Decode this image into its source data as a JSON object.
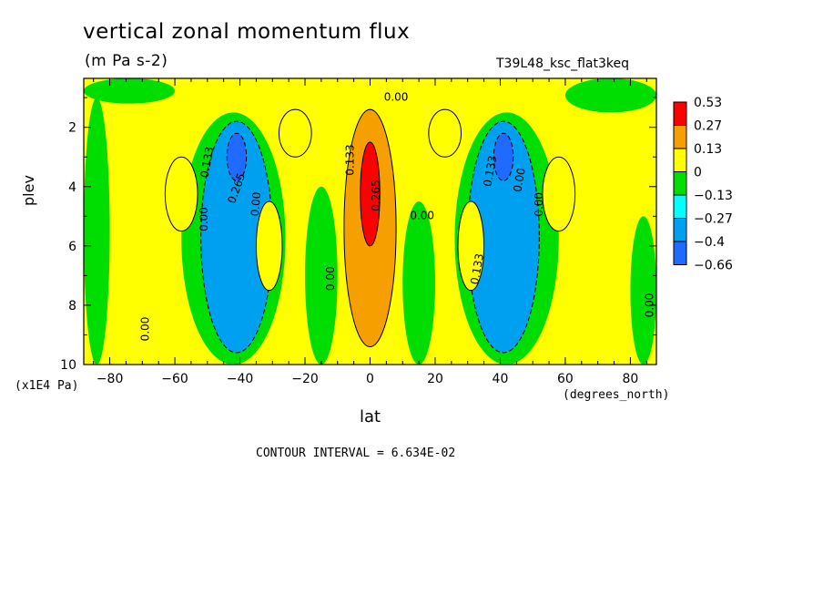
{
  "title": "vertical zonal momentum flux",
  "units": "(m Pa s-2)",
  "run_label": "T39L48_ksc_flat3keq",
  "contour_interval": "CONTOUR INTERVAL = 6.634E-02",
  "chart_data": {
    "type": "heatmap",
    "xlabel": "lat",
    "xunits": "(degrees_north)",
    "ylabel": "plev",
    "yunits": "(x1E4 Pa)",
    "xlim": [
      -88,
      88
    ],
    "ylim": [
      10,
      0.35
    ],
    "xticks": [
      -80,
      -60,
      -40,
      -20,
      0,
      20,
      40,
      60,
      80
    ],
    "yticks": [
      2,
      4,
      6,
      8,
      10
    ],
    "colorbar": {
      "levels": [
        "0.53",
        "0.27",
        "0.13",
        "0",
        "-0.13",
        "-0.27",
        "-0.4",
        "-0.66"
      ],
      "colors": [
        "#ff0000",
        "#f5a000",
        "#ffff00",
        "#00dd00",
        "#00ffff",
        "#00a0f0",
        "#1f6bff"
      ]
    },
    "regions": [
      {
        "name": "tropical-positive-jet",
        "lat": [
          -8,
          8
        ],
        "plev": [
          1.4,
          9.4
        ],
        "value": 0.27
      },
      {
        "name": "tropical-core",
        "lat": [
          -3,
          3
        ],
        "plev": [
          2.5,
          6.0
        ],
        "value": 0.53
      },
      {
        "name": "sh-negative-jet",
        "lat": [
          -52,
          -30
        ],
        "plev": [
          1.8,
          9.6
        ],
        "value": -0.27
      },
      {
        "name": "sh-negative-core",
        "lat": [
          -44,
          -38
        ],
        "plev": [
          2.2,
          3.8
        ],
        "value": -0.66
      },
      {
        "name": "nh-negative-jet",
        "lat": [
          30,
          52
        ],
        "plev": [
          1.8,
          9.6
        ],
        "value": -0.27
      },
      {
        "name": "nh-negative-core",
        "lat": [
          38,
          44
        ],
        "plev": [
          2.2,
          3.8
        ],
        "value": -0.66
      },
      {
        "name": "sh-positive-flank",
        "lat": [
          -35,
          -27
        ],
        "plev": [
          4.5,
          7.5
        ],
        "value": 0.13
      },
      {
        "name": "nh-positive-flank",
        "lat": [
          27,
          35
        ],
        "plev": [
          4.5,
          7.5
        ],
        "value": 0.13
      },
      {
        "name": "sh-upper-positive",
        "lat": [
          -28,
          -18
        ],
        "plev": [
          1.4,
          3.0
        ],
        "value": 0.13
      },
      {
        "name": "nh-upper-positive",
        "lat": [
          18,
          28
        ],
        "plev": [
          1.4,
          3.0
        ],
        "value": 0.13
      },
      {
        "name": "sh-subtropical-positive",
        "lat": [
          -63,
          -53
        ],
        "plev": [
          3.0,
          5.5
        ],
        "value": 0.13
      },
      {
        "name": "nh-subtropical-positive",
        "lat": [
          53,
          63
        ],
        "plev": [
          3.0,
          5.5
        ],
        "value": 0.13
      }
    ],
    "contour_labels": [
      {
        "text": "0.00",
        "lat": 8,
        "plev": 1.1,
        "angle": 0
      },
      {
        "text": "0.133",
        "lat": -49,
        "plev": 3.2,
        "angle": -80
      },
      {
        "text": "0.265",
        "lat": -40,
        "plev": 4.1,
        "angle": -70
      },
      {
        "text": "0.00",
        "lat": -34,
        "plev": 4.6,
        "angle": -85
      },
      {
        "text": "0.00",
        "lat": -50,
        "plev": 5.1,
        "angle": -90
      },
      {
        "text": "0.133",
        "lat": -5,
        "plev": 3.1,
        "angle": -90
      },
      {
        "text": "0.265",
        "lat": 3,
        "plev": 4.3,
        "angle": -90
      },
      {
        "text": "0.00",
        "lat": 16,
        "plev": 5.1,
        "angle": 0
      },
      {
        "text": "0.00",
        "lat": -11,
        "plev": 7.1,
        "angle": -90
      },
      {
        "text": "0.00",
        "lat": -68,
        "plev": 8.8,
        "angle": -90
      },
      {
        "text": "0.133",
        "lat": 34,
        "plev": 6.8,
        "angle": -80
      },
      {
        "text": "0.133",
        "lat": 38,
        "plev": 3.5,
        "angle": -80
      },
      {
        "text": "0.00",
        "lat": 47,
        "plev": 3.8,
        "angle": -80
      },
      {
        "text": "0.00",
        "lat": 53,
        "plev": 4.6,
        "angle": -90
      },
      {
        "text": "0.00",
        "lat": 87,
        "plev": 8.0,
        "angle": -90
      }
    ]
  }
}
